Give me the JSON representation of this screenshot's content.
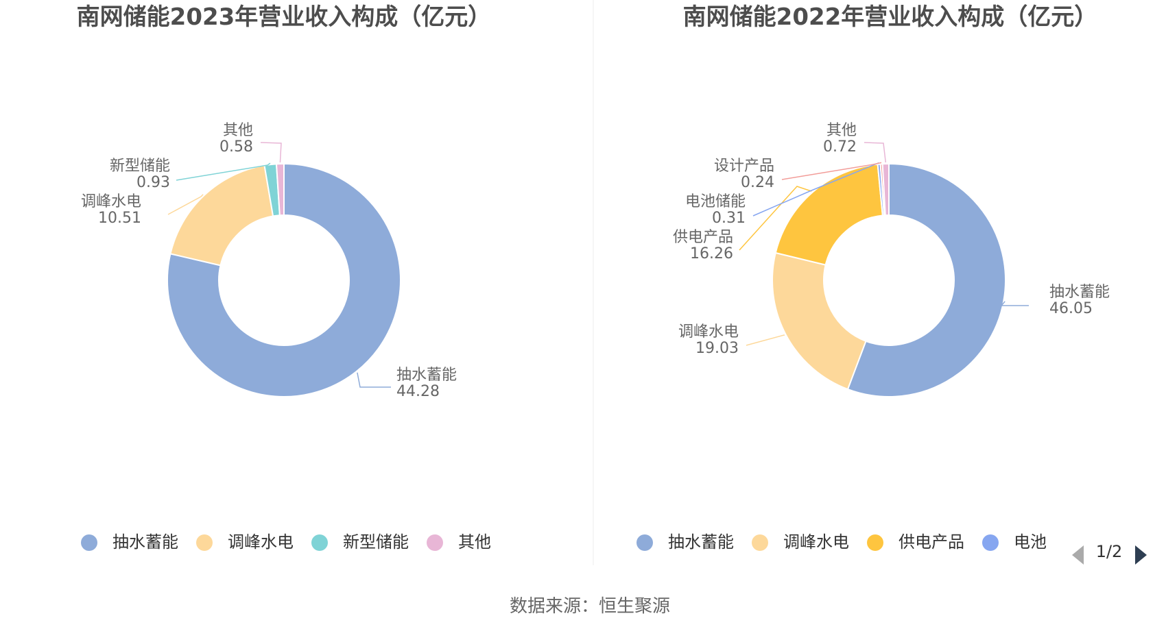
{
  "source": "数据来源：恒生聚源",
  "chart_data": [
    {
      "type": "pie",
      "title": "南网储能2023年营业收入构成（亿元）",
      "slices": [
        {
          "name": "抽水蓄能",
          "value": 44.28,
          "label": "44.28",
          "color": "#8eabd9"
        },
        {
          "name": "调峰水电",
          "value": 10.51,
          "label": "10.51",
          "color": "#fdd89a"
        },
        {
          "name": "新型储能",
          "value": 0.93,
          "label": "0.93",
          "color": "#7fd3d6"
        },
        {
          "name": "其他",
          "value": 0.58,
          "label": "0.58",
          "color": "#e8b6d6"
        }
      ],
      "legend": [
        "抽水蓄能",
        "调峰水电",
        "新型储能",
        "其他"
      ],
      "legend_position": "bottom"
    },
    {
      "type": "pie",
      "title": "南网储能2022年营业收入构成（亿元）",
      "slices": [
        {
          "name": "抽水蓄能",
          "value": 46.05,
          "label": "46.05",
          "color": "#8eabd9"
        },
        {
          "name": "调峰水电",
          "value": 19.03,
          "label": "19.03",
          "color": "#fdd89a"
        },
        {
          "name": "供电产品",
          "value": 16.26,
          "label": "16.26",
          "color": "#fec53f"
        },
        {
          "name": "电池储能",
          "value": 0.31,
          "label": "0.31",
          "color": "#86a6f0"
        },
        {
          "name": "设计产品",
          "value": 0.24,
          "label": "0.24",
          "color": "#f29c98"
        },
        {
          "name": "其他",
          "value": 0.72,
          "label": "0.72",
          "color": "#e8b6d6"
        }
      ],
      "legend": [
        "抽水蓄能",
        "调峰水电",
        "供电产品",
        "电池"
      ],
      "legend_position": "bottom",
      "pager": "1/2"
    }
  ]
}
